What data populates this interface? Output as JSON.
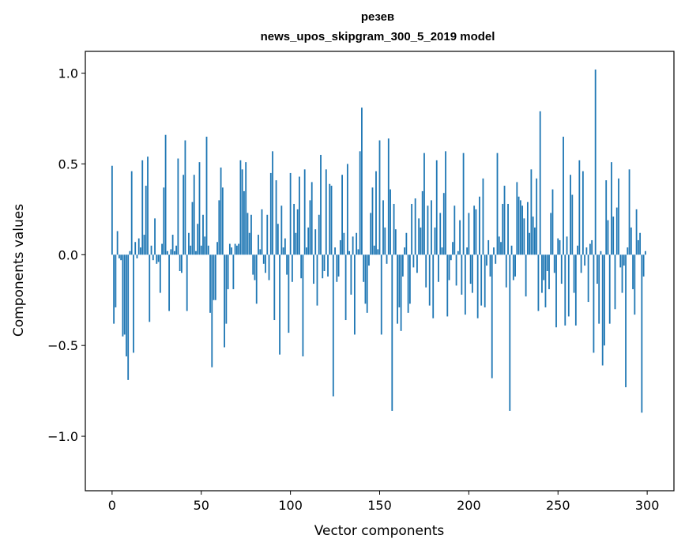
{
  "chart_data": {
    "type": "bar",
    "title": "резев",
    "subtitle": "news_upos_skipgram_300_5_2019 model",
    "xlabel": "Vector components",
    "ylabel": "Components values",
    "xlim": [
      -15,
      315
    ],
    "ylim": [
      -1.3,
      1.12
    ],
    "xticks": [
      0,
      50,
      100,
      150,
      200,
      250,
      300
    ],
    "xtick_labels": [
      "0",
      "50",
      "100",
      "150",
      "200",
      "250",
      "300"
    ],
    "yticks": [
      -1.0,
      -0.5,
      0.0,
      0.5,
      1.0
    ],
    "ytick_labels": [
      "−1.0",
      "−0.5",
      "0.0",
      "0.5",
      "1.0"
    ],
    "bar_color": "#1f77b4",
    "values": [
      0.49,
      -0.38,
      -0.29,
      0.13,
      -0.02,
      -0.03,
      -0.45,
      -0.44,
      -0.56,
      -0.69,
      0.02,
      0.46,
      -0.54,
      0.07,
      -0.02,
      0.09,
      0.04,
      0.52,
      0.11,
      0.38,
      0.54,
      -0.37,
      0.05,
      -0.03,
      0.2,
      -0.05,
      -0.04,
      -0.21,
      0.06,
      0.37,
      0.66,
      0.02,
      -0.31,
      0.03,
      0.11,
      0.02,
      0.05,
      0.53,
      -0.09,
      -0.1,
      0.44,
      0.63,
      -0.31,
      0.12,
      0.05,
      0.29,
      0.44,
      0.02,
      0.17,
      0.51,
      0.05,
      0.22,
      0.1,
      0.65,
      0.05,
      -0.32,
      -0.62,
      -0.25,
      -0.25,
      0.07,
      0.3,
      0.48,
      0.37,
      -0.51,
      -0.38,
      -0.19,
      0.06,
      0.04,
      -0.19,
      0.06,
      0.05,
      0.06,
      0.52,
      0.47,
      0.35,
      0.51,
      0.23,
      0.12,
      0.22,
      -0.11,
      -0.14,
      -0.27,
      0.11,
      0.03,
      0.25,
      -0.05,
      -0.1,
      0.22,
      -0.14,
      0.45,
      0.57,
      -0.36,
      0.41,
      0.17,
      -0.55,
      0.27,
      0.04,
      0.09,
      -0.11,
      -0.43,
      0.45,
      -0.15,
      0.28,
      0.12,
      0.25,
      0.43,
      -0.13,
      -0.56,
      0.47,
      0.04,
      0.15,
      0.3,
      0.4,
      -0.16,
      0.14,
      -0.28,
      0.22,
      0.55,
      -0.13,
      -0.09,
      0.47,
      -0.12,
      0.39,
      0.38,
      -0.78,
      0.04,
      -0.15,
      -0.12,
      0.08,
      0.44,
      0.12,
      -0.36,
      0.5,
      0.02,
      -0.22,
      0.1,
      -0.44,
      0.12,
      0.03,
      0.57,
      0.81,
      -0.15,
      -0.27,
      -0.32,
      -0.06,
      0.23,
      0.37,
      0.05,
      0.46,
      0.03,
      0.63,
      -0.44,
      0.3,
      0.15,
      -0.05,
      0.64,
      0.36,
      -0.86,
      0.28,
      0.14,
      -0.38,
      -0.29,
      -0.42,
      -0.12,
      0.04,
      0.12,
      -0.32,
      -0.27,
      0.28,
      -0.07,
      0.31,
      -0.1,
      0.2,
      0.15,
      0.35,
      0.56,
      -0.18,
      0.27,
      -0.28,
      0.3,
      -0.35,
      0.15,
      0.52,
      -0.15,
      0.23,
      0.04,
      0.34,
      0.57,
      -0.34,
      -0.14,
      -0.03,
      0.07,
      0.27,
      -0.17,
      0.02,
      0.19,
      -0.22,
      0.56,
      -0.33,
      0.04,
      0.23,
      -0.16,
      -0.21,
      0.27,
      0.25,
      -0.35,
      0.32,
      -0.28,
      0.42,
      -0.29,
      -0.06,
      0.08,
      -0.12,
      -0.68,
      0.04,
      -0.05,
      0.56,
      0.1,
      0.07,
      0.28,
      0.38,
      -0.18,
      0.28,
      -0.86,
      0.05,
      -0.14,
      -0.12,
      0.4,
      0.32,
      0.3,
      0.27,
      0.2,
      -0.23,
      0.29,
      0.12,
      0.47,
      0.21,
      0.15,
      0.42,
      -0.31,
      0.79,
      -0.21,
      -0.14,
      -0.29,
      -0.09,
      -0.19,
      0.23,
      0.36,
      -0.1,
      -0.4,
      0.09,
      0.08,
      -0.16,
      0.65,
      -0.39,
      0.1,
      -0.34,
      0.44,
      0.33,
      -0.21,
      -0.39,
      0.05,
      0.52,
      -0.1,
      0.46,
      -0.06,
      0.04,
      -0.26,
      0.06,
      0.08,
      -0.54,
      1.02,
      -0.16,
      -0.38,
      0.02,
      -0.61,
      -0.5,
      0.41,
      0.19,
      -0.38,
      0.51,
      0.21,
      -0.3,
      0.26,
      0.42,
      -0.07,
      -0.21,
      -0.06,
      -0.73,
      0.04,
      0.47,
      0.15,
      -0.19,
      -0.33,
      0.25,
      0.08,
      0.12,
      -0.87,
      -0.12,
      0.02
    ]
  }
}
